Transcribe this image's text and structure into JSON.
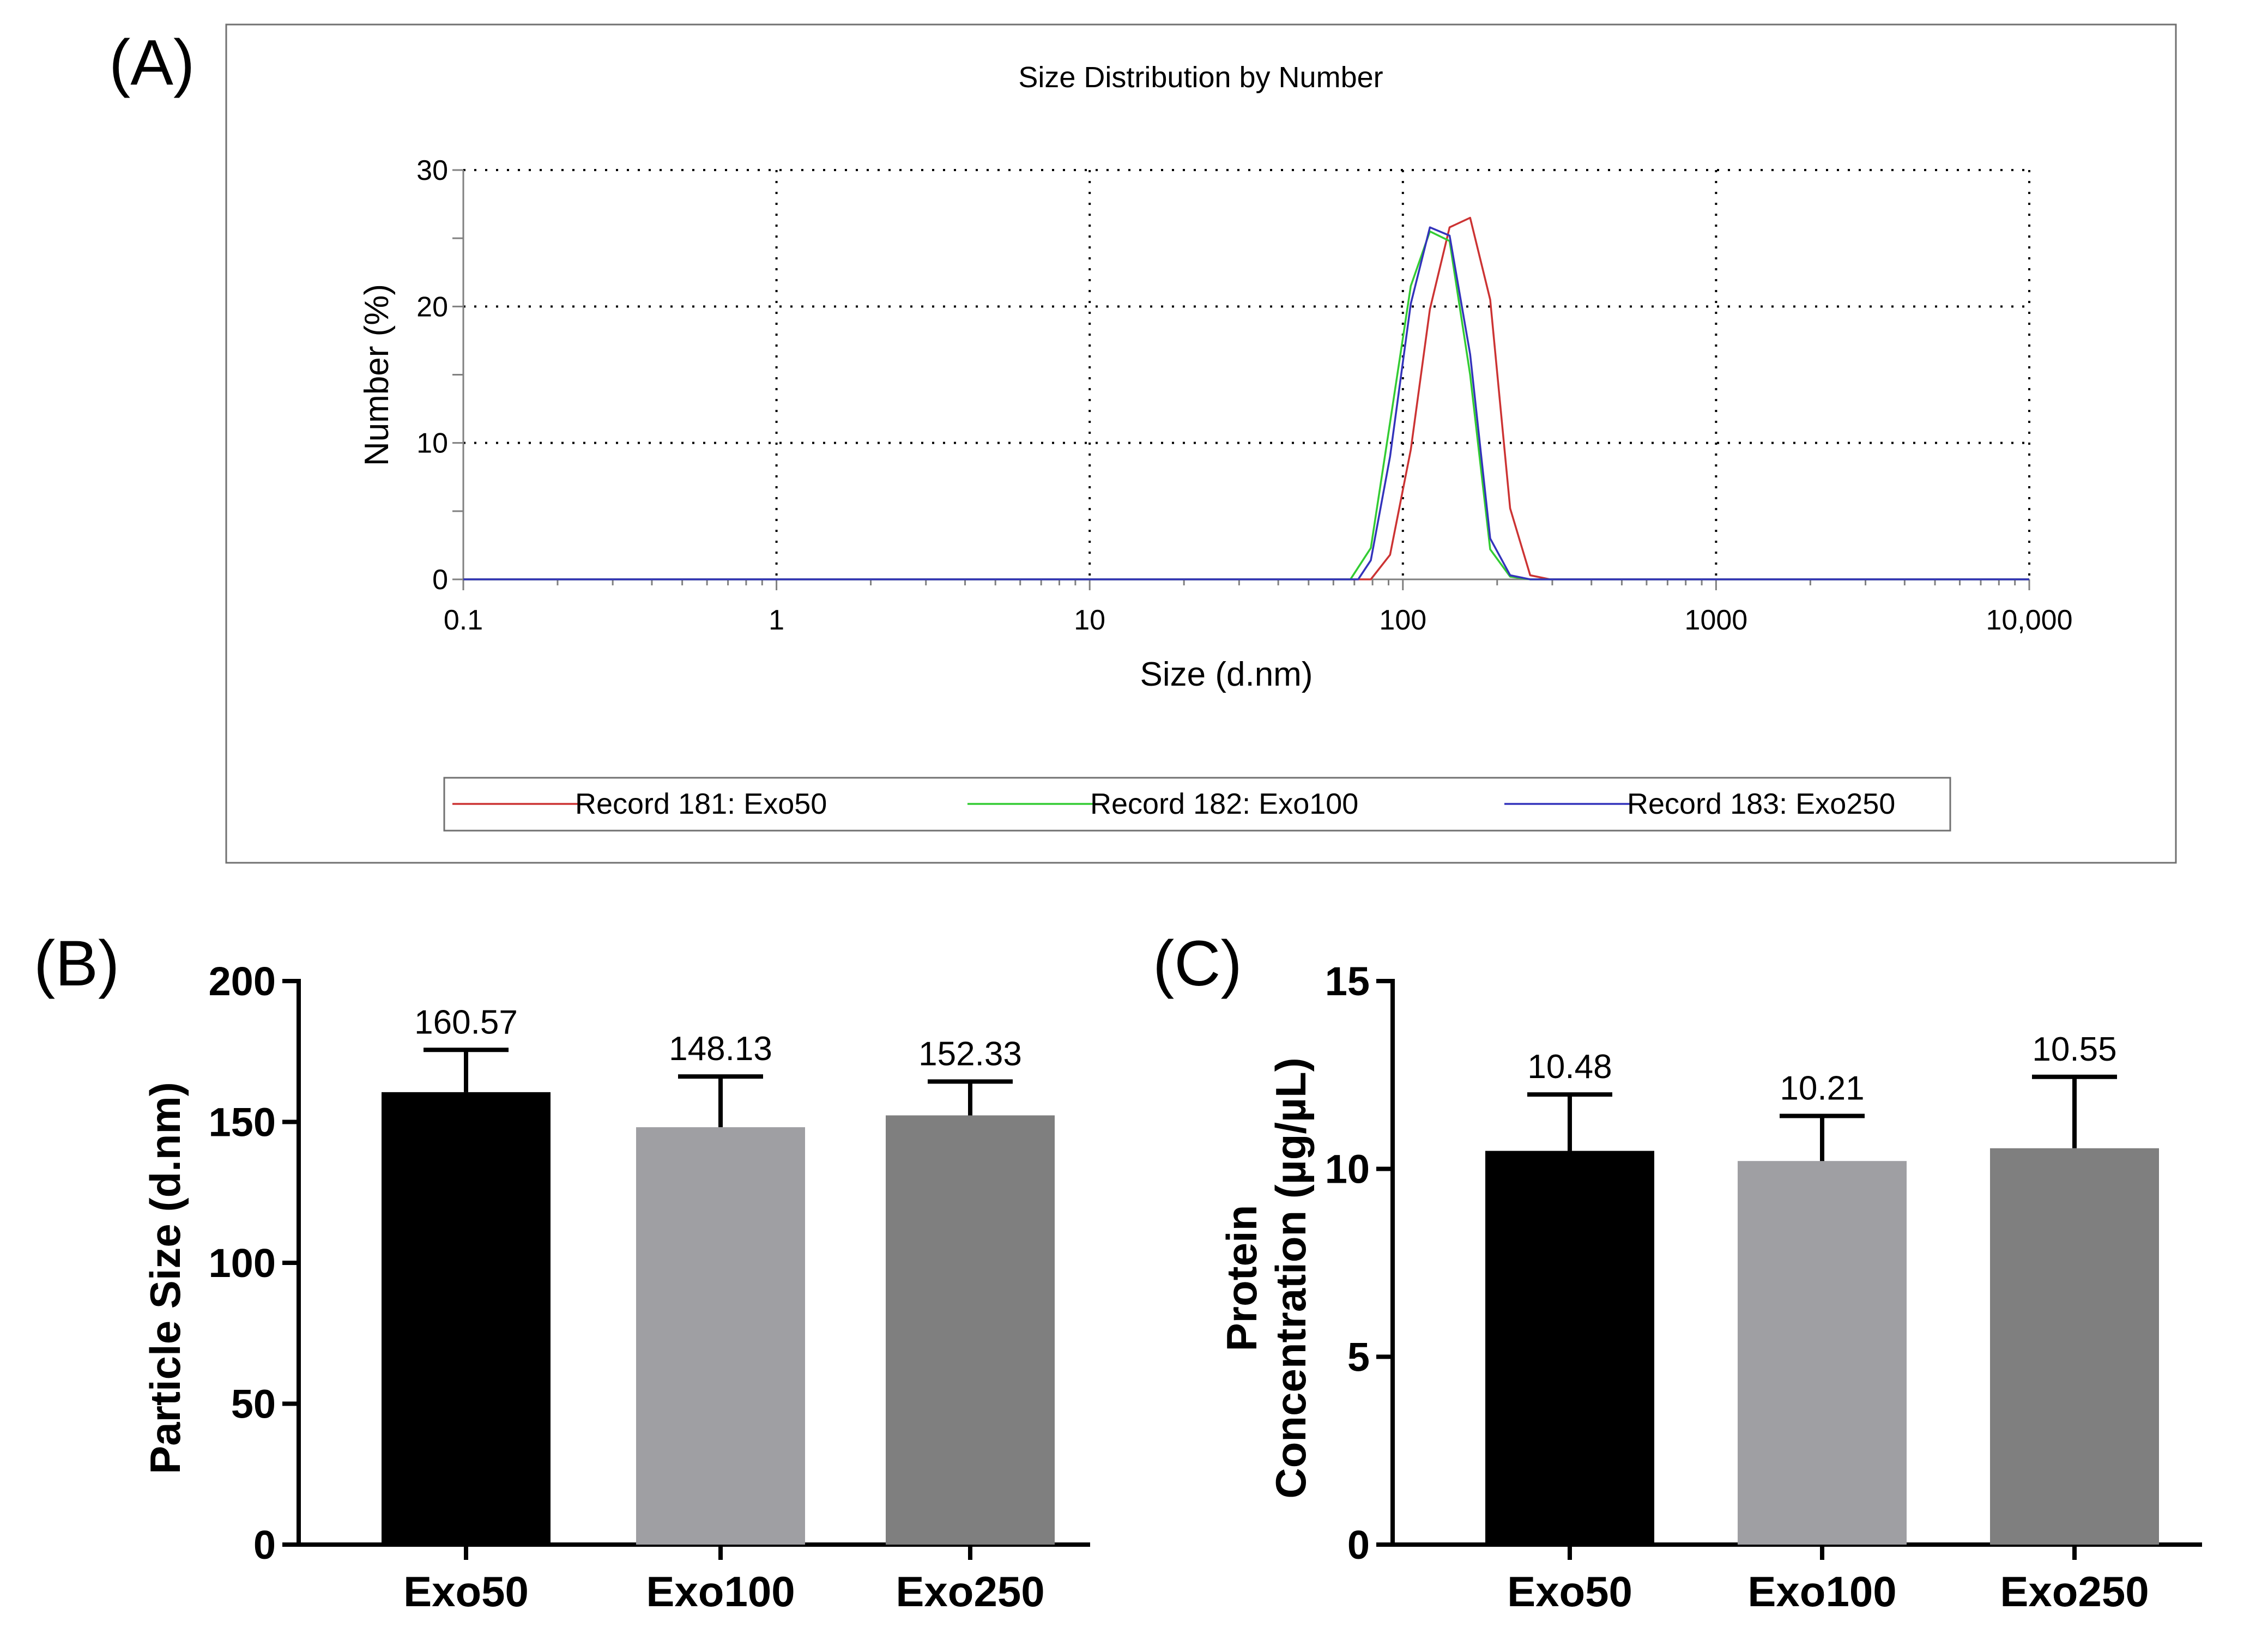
{
  "panels": {
    "a": "(A)",
    "b": "(B)",
    "c": "(C)"
  },
  "colors": {
    "red": "#cc3333",
    "green": "#33cc33",
    "blue": "#3333bb",
    "black": "#000000",
    "light_gray": "#9f9fa3",
    "dark_gray": "#7f7f7f"
  },
  "chart_data": [
    {
      "type": "line",
      "title": "Size Distribution by Number",
      "xlabel": "Size (d.nm)",
      "ylabel": "Number (%)",
      "xscale": "log",
      "xlim": [
        0.1,
        10000
      ],
      "ylim": [
        0,
        30
      ],
      "grid": true,
      "legend_position": "bottom",
      "x_ticks": [
        {
          "value": 0.1,
          "label": "0.1"
        },
        {
          "value": 1,
          "label": "1"
        },
        {
          "value": 10,
          "label": "10"
        },
        {
          "value": 100,
          "label": "100"
        },
        {
          "value": 1000,
          "label": "1000"
        },
        {
          "value": 10000,
          "label": "10,000"
        }
      ],
      "y_ticks": [
        {
          "value": 0,
          "label": "0"
        },
        {
          "value": 10,
          "label": "10"
        },
        {
          "value": 20,
          "label": "20"
        },
        {
          "value": 30,
          "label": "30"
        }
      ],
      "series": [
        {
          "name": "Record 181: Exo50",
          "color": "#cc3333",
          "x": [
            0.1,
            79,
            91,
            106,
            122,
            141,
            164,
            190,
            220,
            255,
            295,
            10000
          ],
          "y": [
            0,
            0,
            1.8,
            9.5,
            19.8,
            25.8,
            26.5,
            20.5,
            5.2,
            0.3,
            0,
            0
          ]
        },
        {
          "name": "Record 182: Exo100",
          "color": "#33cc33",
          "x": [
            0.1,
            68,
            79,
            91,
            106,
            122,
            141,
            164,
            190,
            220,
            255,
            10000
          ],
          "y": [
            0,
            0,
            2.3,
            11.5,
            21.5,
            25.5,
            24.8,
            15.0,
            2.2,
            0.2,
            0,
            0
          ]
        },
        {
          "name": "Record 183: Exo250",
          "color": "#3333bb",
          "x": [
            0.1,
            72,
            79,
            91,
            106,
            122,
            141,
            164,
            190,
            220,
            255,
            10000
          ],
          "y": [
            0,
            0,
            1.4,
            9.0,
            20.2,
            25.8,
            25.2,
            16.5,
            3.0,
            0.3,
            0,
            0
          ]
        }
      ]
    },
    {
      "type": "bar",
      "ylabel": "Particle Size (d.nm)",
      "ylim": [
        0,
        200
      ],
      "y_ticks": [
        0,
        50,
        100,
        150,
        200
      ],
      "categories": [
        "Exo50",
        "Exo100",
        "Exo250"
      ],
      "values": [
        160.57,
        148.13,
        152.33
      ],
      "value_labels": [
        "160.57",
        "148.13",
        "152.33"
      ],
      "errors": [
        15,
        18,
        12
      ],
      "colors": [
        "#000000",
        "#9f9fa3",
        "#7f7f7f"
      ]
    },
    {
      "type": "bar",
      "ylabel_lines": [
        "Protein",
        "Concentration (µg/µL)"
      ],
      "ylim": [
        0,
        15
      ],
      "y_ticks": [
        0,
        5,
        10,
        15
      ],
      "categories": [
        "Exo50",
        "Exo100",
        "Exo250"
      ],
      "values": [
        10.48,
        10.21,
        10.55
      ],
      "value_labels": [
        "10.48",
        "10.21",
        "10.55"
      ],
      "errors": [
        1.5,
        1.2,
        1.9
      ],
      "colors": [
        "#000000",
        "#9f9fa3",
        "#7f7f7f"
      ]
    }
  ]
}
